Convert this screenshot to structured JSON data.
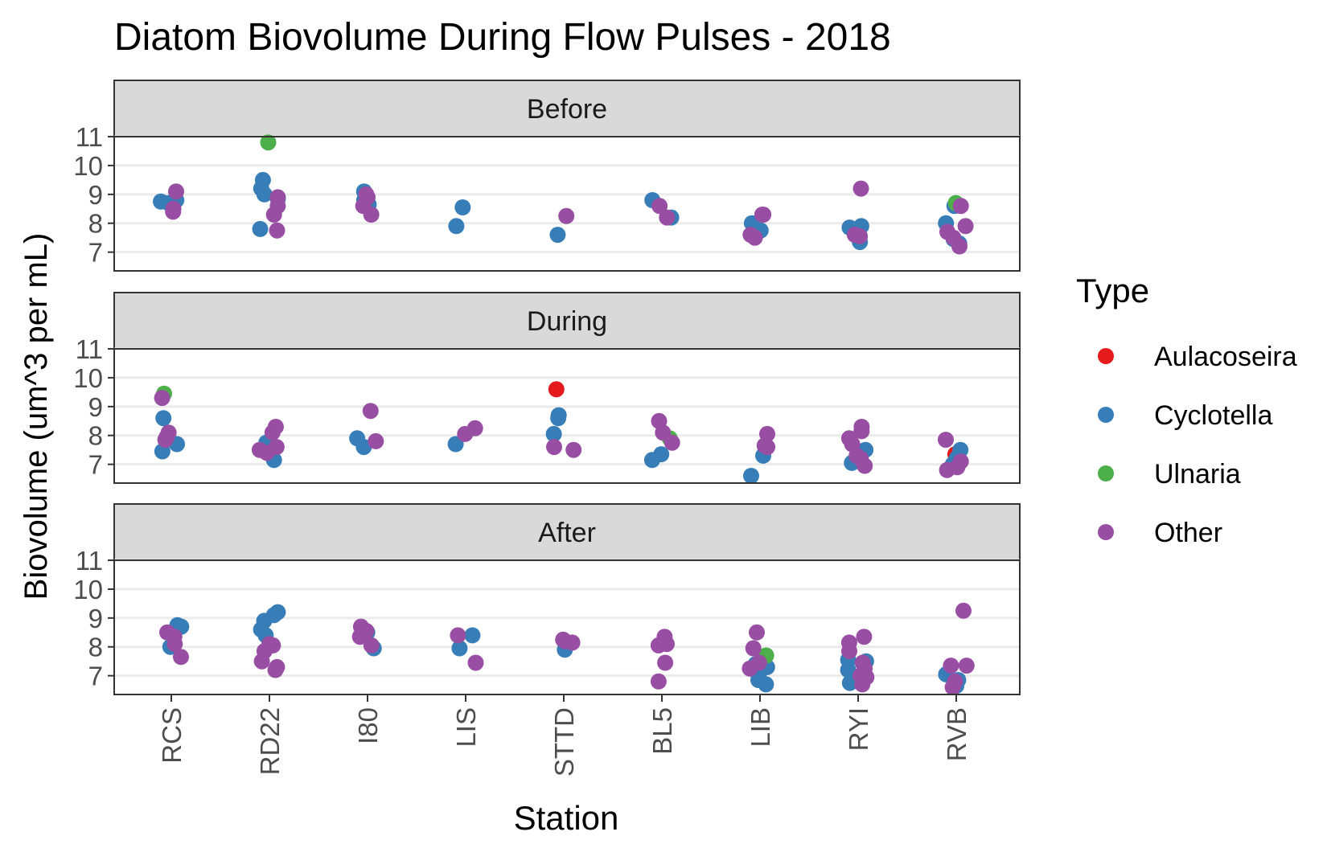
{
  "chart_data": {
    "type": "scatter",
    "title": "Diatom Biovolume During Flow Pulses - 2018",
    "xlabel": "Station",
    "ylabel": "Biovolume (um^3 per mL)",
    "categories": [
      "RCS",
      "RD22",
      "I80",
      "LIS",
      "STTD",
      "BL5",
      "LIB",
      "RYI",
      "RVB"
    ],
    "yticks": [
      7,
      8,
      9,
      10,
      11
    ],
    "ylim": [
      6.35,
      11.0
    ],
    "grid": true,
    "legend": {
      "title": "Type",
      "position": "right",
      "entries": [
        {
          "name": "Aulacoseira",
          "color": "#e41a1c"
        },
        {
          "name": "Cyclotella",
          "color": "#377eb8"
        },
        {
          "name": "Ulnaria",
          "color": "#4daf4a"
        },
        {
          "name": "Other",
          "color": "#984ea3"
        }
      ]
    },
    "panels": [
      {
        "label": "Before",
        "series": [
          {
            "name": "Cyclotella",
            "points": [
              [
                "RCS",
                8.75
              ],
              [
                "RCS",
                8.8
              ],
              [
                "RCS",
                8.7
              ],
              [
                "RD22",
                8.85
              ],
              [
                "RD22",
                9.2
              ],
              [
                "RD22",
                9.5
              ],
              [
                "RD22",
                9.0
              ],
              [
                "RD22",
                7.8
              ],
              [
                "I80",
                8.65
              ],
              [
                "I80",
                9.1
              ],
              [
                "I80",
                8.8
              ],
              [
                "LIS",
                8.55
              ],
              [
                "LIS",
                7.9
              ],
              [
                "STTD",
                7.6
              ],
              [
                "BL5",
                8.8
              ],
              [
                "BL5",
                8.2
              ],
              [
                "LIB",
                8.0
              ],
              [
                "LIB",
                7.75
              ],
              [
                "RYI",
                7.85
              ],
              [
                "RYI",
                7.9
              ],
              [
                "RYI",
                7.35
              ],
              [
                "RVB",
                8.6
              ],
              [
                "RVB",
                8.0
              ],
              [
                "RVB",
                7.45
              ],
              [
                "RVB",
                7.3
              ]
            ]
          },
          {
            "name": "Ulnaria",
            "points": [
              [
                "RD22",
                10.8
              ],
              [
                "RVB",
                8.7
              ]
            ]
          },
          {
            "name": "Other",
            "points": [
              [
                "RCS",
                8.4
              ],
              [
                "RCS",
                9.1
              ],
              [
                "RCS",
                8.5
              ],
              [
                "RD22",
                8.3
              ],
              [
                "RD22",
                8.9
              ],
              [
                "RD22",
                7.75
              ],
              [
                "RD22",
                8.6
              ],
              [
                "I80",
                8.9
              ],
              [
                "I80",
                8.3
              ],
              [
                "I80",
                8.6
              ],
              [
                "I80",
                9.0
              ],
              [
                "STTD",
                8.25
              ],
              [
                "BL5",
                8.2
              ],
              [
                "BL5",
                8.6
              ],
              [
                "LIB",
                7.6
              ],
              [
                "LIB",
                8.3
              ],
              [
                "LIB",
                7.5
              ],
              [
                "LIB",
                8.3
              ],
              [
                "RYI",
                9.2
              ],
              [
                "RYI",
                7.6
              ],
              [
                "RYI",
                7.55
              ],
              [
                "RVB",
                7.5
              ],
              [
                "RVB",
                7.7
              ],
              [
                "RVB",
                7.9
              ],
              [
                "RVB",
                8.6
              ],
              [
                "RVB",
                7.2
              ]
            ]
          }
        ]
      },
      {
        "label": "During",
        "series": [
          {
            "name": "Aulacoseira",
            "points": [
              [
                "STTD",
                9.6
              ],
              [
                "RVB",
                7.35
              ]
            ]
          },
          {
            "name": "Cyclotella",
            "points": [
              [
                "RCS",
                8.6
              ],
              [
                "RCS",
                7.7
              ],
              [
                "RCS",
                7.45
              ],
              [
                "RD22",
                7.75
              ],
              [
                "RD22",
                7.15
              ],
              [
                "I80",
                7.9
              ],
              [
                "I80",
                7.6
              ],
              [
                "LIS",
                7.7
              ],
              [
                "STTD",
                8.05
              ],
              [
                "STTD",
                8.6
              ],
              [
                "STTD",
                8.7
              ],
              [
                "BL5",
                7.15
              ],
              [
                "BL5",
                7.35
              ],
              [
                "LIB",
                7.3
              ],
              [
                "LIB",
                6.6
              ],
              [
                "RYI",
                7.5
              ],
              [
                "RYI",
                7.05
              ],
              [
                "RVB",
                7.5
              ],
              [
                "RVB",
                7.0
              ],
              [
                "RVB",
                7.2
              ]
            ]
          },
          {
            "name": "Ulnaria",
            "points": [
              [
                "RCS",
                9.45
              ],
              [
                "BL5",
                7.9
              ]
            ]
          },
          {
            "name": "Other",
            "points": [
              [
                "RCS",
                9.3
              ],
              [
                "RCS",
                7.85
              ],
              [
                "RCS",
                7.95
              ],
              [
                "RCS",
                8.1
              ],
              [
                "RD22",
                8.3
              ],
              [
                "RD22",
                8.1
              ],
              [
                "RD22",
                7.5
              ],
              [
                "RD22",
                7.4
              ],
              [
                "RD22",
                7.6
              ],
              [
                "I80",
                8.85
              ],
              [
                "I80",
                7.8
              ],
              [
                "LIS",
                8.05
              ],
              [
                "LIS",
                8.25
              ],
              [
                "STTD",
                7.6
              ],
              [
                "STTD",
                7.5
              ],
              [
                "BL5",
                8.5
              ],
              [
                "BL5",
                8.1
              ],
              [
                "BL5",
                7.75
              ],
              [
                "LIB",
                8.05
              ],
              [
                "LIB",
                7.65
              ],
              [
                "LIB",
                7.6
              ],
              [
                "RYI",
                8.3
              ],
              [
                "RYI",
                8.15
              ],
              [
                "RYI",
                7.9
              ],
              [
                "RYI",
                7.7
              ],
              [
                "RYI",
                7.3
              ],
              [
                "RYI",
                6.95
              ],
              [
                "RYI",
                7.2
              ],
              [
                "RVB",
                7.85
              ],
              [
                "RVB",
                6.9
              ],
              [
                "RVB",
                6.8
              ],
              [
                "RVB",
                7.1
              ]
            ]
          }
        ]
      },
      {
        "label": "After",
        "series": [
          {
            "name": "Cyclotella",
            "points": [
              [
                "RCS",
                8.7
              ],
              [
                "RCS",
                8.75
              ],
              [
                "RCS",
                8.0
              ],
              [
                "RD22",
                9.2
              ],
              [
                "RD22",
                9.1
              ],
              [
                "RD22",
                8.9
              ],
              [
                "RD22",
                8.6
              ],
              [
                "RD22",
                8.4
              ],
              [
                "I80",
                7.95
              ],
              [
                "I80",
                8.5
              ],
              [
                "LIS",
                8.4
              ],
              [
                "LIS",
                7.95
              ],
              [
                "STTD",
                7.9
              ],
              [
                "LIB",
                7.3
              ],
              [
                "LIB",
                7.0
              ],
              [
                "LIB",
                6.85
              ],
              [
                "LIB",
                6.7
              ],
              [
                "LIB",
                7.4
              ],
              [
                "RYI",
                7.5
              ],
              [
                "RYI",
                7.2
              ],
              [
                "RYI",
                6.75
              ],
              [
                "RYI",
                7.55
              ],
              [
                "RVB",
                7.05
              ],
              [
                "RVB",
                6.65
              ],
              [
                "RVB",
                6.85
              ]
            ]
          },
          {
            "name": "Ulnaria",
            "points": [
              [
                "LIB",
                7.7
              ]
            ]
          },
          {
            "name": "Other",
            "points": [
              [
                "RCS",
                8.35
              ],
              [
                "RCS",
                8.5
              ],
              [
                "RCS",
                7.65
              ],
              [
                "RCS",
                8.1
              ],
              [
                "RD22",
                8.05
              ],
              [
                "RD22",
                7.85
              ],
              [
                "RD22",
                7.5
              ],
              [
                "RD22",
                7.3
              ],
              [
                "RD22",
                8.1
              ],
              [
                "RD22",
                7.2
              ],
              [
                "I80",
                8.7
              ],
              [
                "I80",
                8.35
              ],
              [
                "I80",
                8.05
              ],
              [
                "I80",
                8.55
              ],
              [
                "LIS",
                8.4
              ],
              [
                "LIS",
                7.45
              ],
              [
                "STTD",
                8.15
              ],
              [
                "STTD",
                8.25
              ],
              [
                "STTD",
                8.2
              ],
              [
                "BL5",
                8.35
              ],
              [
                "BL5",
                8.1
              ],
              [
                "BL5",
                7.45
              ],
              [
                "BL5",
                6.8
              ],
              [
                "BL5",
                8.05
              ],
              [
                "LIB",
                8.5
              ],
              [
                "LIB",
                7.95
              ],
              [
                "LIB",
                7.25
              ],
              [
                "LIB",
                7.45
              ],
              [
                "RYI",
                8.35
              ],
              [
                "RYI",
                8.15
              ],
              [
                "RYI",
                7.85
              ],
              [
                "RYI",
                7.45
              ],
              [
                "RYI",
                7.0
              ],
              [
                "RYI",
                6.7
              ],
              [
                "RYI",
                7.25
              ],
              [
                "RYI",
                6.95
              ],
              [
                "RVB",
                9.25
              ],
              [
                "RVB",
                7.35
              ],
              [
                "RVB",
                7.35
              ],
              [
                "RVB",
                6.6
              ],
              [
                "RVB",
                6.8
              ]
            ]
          }
        ]
      }
    ]
  }
}
